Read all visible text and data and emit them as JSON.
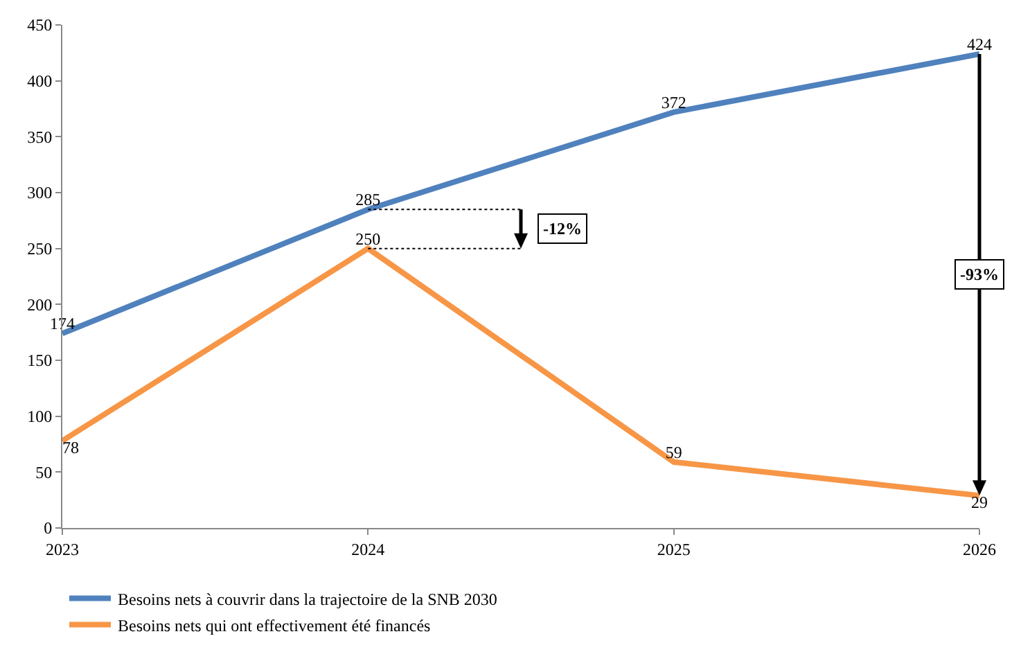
{
  "chart_data": {
    "type": "line",
    "x": [
      2023,
      2024,
      2025,
      2026
    ],
    "xlim": [
      2023,
      2026
    ],
    "xticks": [
      2023,
      2024,
      2025,
      2026
    ],
    "ylim": [
      0,
      450
    ],
    "yticks": [
      0,
      50,
      100,
      150,
      200,
      250,
      300,
      350,
      400,
      450
    ],
    "series": [
      {
        "name": "Besoins nets à couvrir dans la trajectoire de la SNB 2030",
        "color": "#4f81bd",
        "values": [
          174,
          285,
          372,
          424
        ]
      },
      {
        "name": "Besoins nets qui ont effectivement été financés",
        "color": "#f79646",
        "values": [
          78,
          250,
          59,
          29
        ]
      }
    ],
    "annotations": [
      "-12%",
      "-93%"
    ],
    "data_labels": true,
    "grid": false,
    "legend": "bottom",
    "marker": "none",
    "line_style": "solid"
  }
}
